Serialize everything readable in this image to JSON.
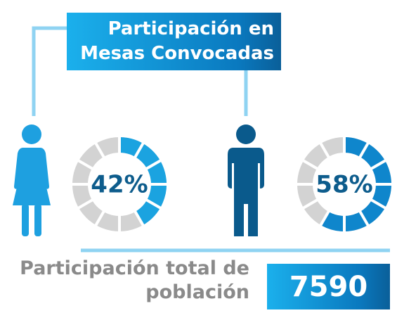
{
  "title": "Participación en Mesas Convocadas",
  "chart_data": [
    {
      "type": "donut",
      "values": [
        42
      ],
      "value_labels": [
        "42%"
      ],
      "color": "#1ba3e0"
    },
    {
      "type": "donut",
      "values": [
        58
      ],
      "value_labels": [
        "58%"
      ],
      "color": "#0f86cc"
    }
  ],
  "total": {
    "label": "Participación total de población",
    "value": 7590
  }
}
